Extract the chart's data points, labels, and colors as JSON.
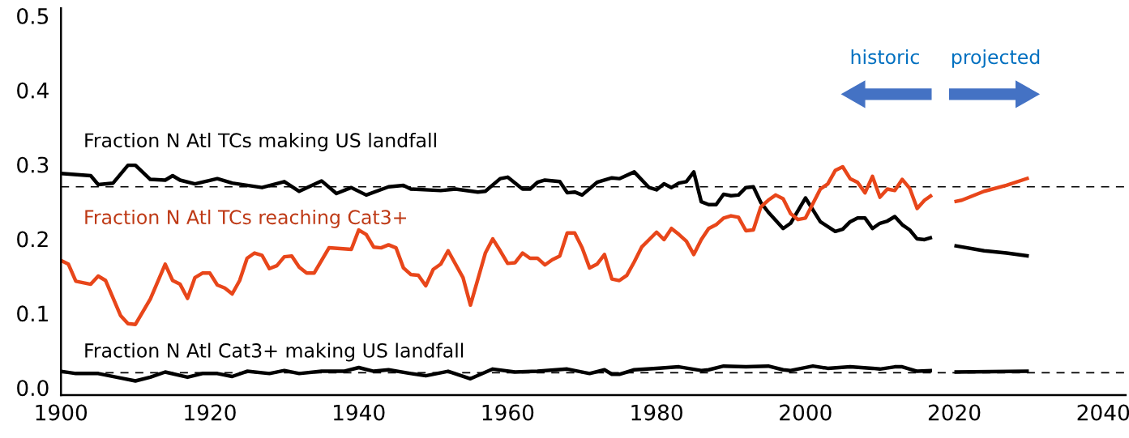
{
  "chart_data": {
    "type": "line",
    "xlim": [
      1900,
      2043
    ],
    "xticks": [
      1900,
      1920,
      1940,
      1960,
      1980,
      2000,
      2020,
      2040
    ],
    "ylim": [
      -0.01,
      0.51
    ],
    "yticks": [
      {
        "value": 0,
        "label": "0.0"
      },
      0.1,
      0.2,
      0.3,
      0.4,
      0.5
    ],
    "grid": false,
    "legend": false,
    "marker": "none",
    "line_style": "solid",
    "series": [
      {
        "name": "Fraction N Atl TCs making US landfall",
        "color": "#000000",
        "x": [
          1900,
          1904,
          1905,
          1907,
          1909,
          1910,
          1912,
          1914,
          1915,
          1916,
          1918,
          1921,
          1923,
          1927,
          1930,
          1932,
          1935,
          1937,
          1939,
          1941,
          1944,
          1946,
          1947,
          1951,
          1953,
          1956,
          1957,
          1959,
          1960,
          1962,
          1963,
          1964,
          1965,
          1967,
          1968,
          1969,
          1970,
          1972,
          1974,
          1975,
          1977,
          1979,
          1980,
          1981,
          1982,
          1983,
          1984,
          1985,
          1986,
          1987,
          1988,
          1989,
          1990,
          1991,
          1992,
          1993,
          1994,
          1995,
          1997,
          1998,
          2000,
          2002,
          2004,
          2005,
          2006,
          2007,
          2008,
          2009,
          2010,
          2011,
          2012,
          2013,
          2014,
          2015,
          2016,
          2017,
          2018,
          2020,
          2024,
          2027,
          2030
        ],
        "values": [
          0.288,
          0.285,
          0.273,
          0.275,
          0.299,
          0.299,
          0.28,
          0.279,
          0.285,
          0.279,
          0.274,
          0.281,
          0.275,
          0.269,
          0.277,
          0.264,
          0.278,
          0.261,
          0.269,
          0.259,
          0.27,
          0.272,
          0.267,
          0.265,
          0.267,
          0.263,
          0.264,
          0.281,
          0.283,
          0.267,
          0.267,
          0.276,
          0.279,
          0.277,
          0.262,
          0.263,
          0.259,
          0.276,
          0.282,
          0.281,
          0.29,
          0.269,
          0.266,
          0.274,
          0.269,
          0.275,
          0.277,
          0.29,
          0.25,
          0.246,
          0.246,
          0.26,
          0.258,
          0.259,
          0.269,
          0.27,
          0.249,
          0.236,
          0.214,
          0.221,
          0.255,
          0.223,
          0.21,
          0.213,
          0.223,
          0.228,
          0.228,
          0.214,
          0.221,
          0.224,
          0.23,
          0.219,
          0.212,
          0.2,
          0.199,
          0.202,
          null,
          0.191,
          0.184,
          0.181,
          0.177
        ]
      },
      {
        "name": "Fraction N Atl TCs reaching Cat3+",
        "color": "#e8461a",
        "x": [
          1900,
          1901,
          1902,
          1904,
          1905,
          1906,
          1908,
          1909,
          1910,
          1912,
          1914,
          1915,
          1916,
          1917,
          1918,
          1919,
          1920,
          1921,
          1922,
          1923,
          1924,
          1925,
          1926,
          1927,
          1928,
          1929,
          1930,
          1931,
          1932,
          1933,
          1934,
          1936,
          1939,
          1940,
          1941,
          1942,
          1943,
          1944,
          1945,
          1946,
          1947,
          1948,
          1949,
          1950,
          1951,
          1952,
          1954,
          1955,
          1957,
          1958,
          1959,
          1960,
          1961,
          1962,
          1963,
          1964,
          1965,
          1966,
          1967,
          1968,
          1969,
          1970,
          1971,
          1972,
          1973,
          1974,
          1975,
          1976,
          1977,
          1978,
          1979,
          1980,
          1981,
          1982,
          1983,
          1984,
          1985,
          1986,
          1987,
          1988,
          1989,
          1990,
          1991,
          1992,
          1993,
          1994,
          1995,
          1996,
          1997,
          1998,
          1999,
          2000,
          2002,
          2003,
          2004,
          2005,
          2006,
          2007,
          2008,
          2009,
          2010,
          2011,
          2012,
          2013,
          2014,
          2015,
          2016,
          2017,
          2018,
          2020,
          2021,
          2024,
          2027,
          2030
        ],
        "values": [
          0.171,
          0.166,
          0.143,
          0.139,
          0.15,
          0.144,
          0.097,
          0.086,
          0.085,
          0.119,
          0.166,
          0.144,
          0.139,
          0.12,
          0.148,
          0.154,
          0.154,
          0.138,
          0.134,
          0.126,
          0.144,
          0.174,
          0.181,
          0.178,
          0.16,
          0.164,
          0.176,
          0.177,
          0.162,
          0.154,
          0.154,
          0.188,
          0.186,
          0.212,
          0.206,
          0.189,
          0.188,
          0.192,
          0.188,
          0.161,
          0.152,
          0.151,
          0.137,
          0.159,
          0.166,
          0.184,
          0.148,
          0.111,
          0.181,
          0.2,
          0.184,
          0.167,
          0.168,
          0.181,
          0.174,
          0.174,
          0.165,
          0.172,
          0.177,
          0.208,
          0.208,
          0.188,
          0.161,
          0.166,
          0.179,
          0.146,
          0.144,
          0.151,
          0.169,
          0.189,
          0.199,
          0.209,
          0.199,
          0.214,
          0.206,
          0.197,
          0.179,
          0.199,
          0.214,
          0.219,
          0.228,
          0.231,
          0.229,
          0.211,
          0.212,
          0.243,
          0.252,
          0.259,
          0.254,
          0.234,
          0.226,
          0.228,
          0.267,
          0.274,
          0.292,
          0.297,
          0.281,
          0.276,
          0.262,
          0.284,
          0.256,
          0.267,
          0.265,
          0.28,
          0.268,
          0.241,
          0.252,
          0.259,
          null,
          0.25,
          0.252,
          0.264,
          0.272,
          0.282
        ]
      },
      {
        "name": "Fraction N Atl Cat3+ making US landfall",
        "color": "#000000",
        "x": [
          1900,
          1902,
          1905,
          1908,
          1910,
          1912,
          1914,
          1917,
          1919,
          1921,
          1923,
          1925,
          1928,
          1930,
          1932,
          1935,
          1938,
          1940,
          1942,
          1944,
          1947,
          1949,
          1952,
          1955,
          1958,
          1961,
          1964,
          1968,
          1971,
          1973,
          1974,
          1975,
          1977,
          1980,
          1983,
          1986,
          1987,
          1989,
          1992,
          1995,
          1997,
          1998,
          2001,
          2003,
          2006,
          2009,
          2010,
          2012,
          2013,
          2015,
          2017,
          2018,
          2020,
          2030
        ],
        "values": [
          0.022,
          0.019,
          0.019,
          0.013,
          0.009,
          0.014,
          0.021,
          0.014,
          0.019,
          0.019,
          0.015,
          0.022,
          0.019,
          0.023,
          0.019,
          0.022,
          0.022,
          0.027,
          0.022,
          0.024,
          0.019,
          0.016,
          0.022,
          0.012,
          0.025,
          0.021,
          0.022,
          0.025,
          0.019,
          0.024,
          0.018,
          0.018,
          0.024,
          0.026,
          0.028,
          0.023,
          0.024,
          0.029,
          0.028,
          0.029,
          0.024,
          0.023,
          0.029,
          0.026,
          0.028,
          0.026,
          0.025,
          0.028,
          0.028,
          0.022,
          0.023,
          null,
          0.021,
          0.022
        ]
      }
    ],
    "ref_lines": [
      {
        "axis": "y",
        "value": 0.27,
        "color": "#000000",
        "line_style": "dashed"
      },
      {
        "axis": "y",
        "value": 0.02,
        "color": "#000000",
        "line_style": "dashed"
      }
    ],
    "annotations": [
      "historic",
      "projected"
    ]
  }
}
